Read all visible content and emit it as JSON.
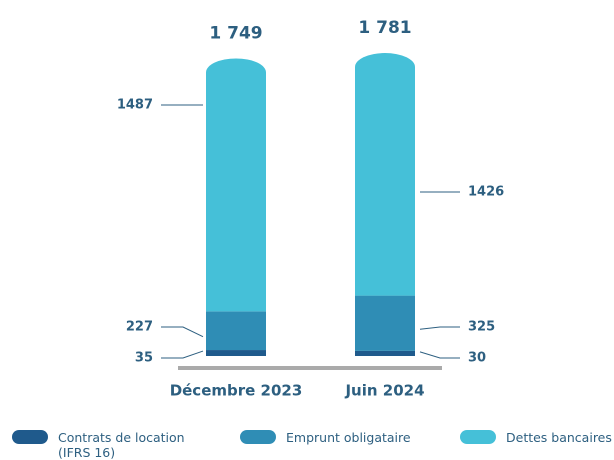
{
  "chart_data": {
    "type": "stacked_bar",
    "categories": [
      "Décembre 2023",
      "Juin 2024"
    ],
    "series": [
      {
        "name": "Contrats de location (IFRS 16)",
        "color": "#1f5a8c",
        "values": [
          35,
          30
        ]
      },
      {
        "name": "Emprunt obligataire",
        "color": "#2f8db5",
        "values": [
          227,
          325
        ]
      },
      {
        "name": "Dettes bancaires",
        "color": "#45c0d8",
        "values": [
          1487,
          1426
        ]
      }
    ],
    "totals": {
      "values": [
        1749,
        1781
      ],
      "value_labels": [
        "1 749",
        "1 781"
      ]
    }
  }
}
